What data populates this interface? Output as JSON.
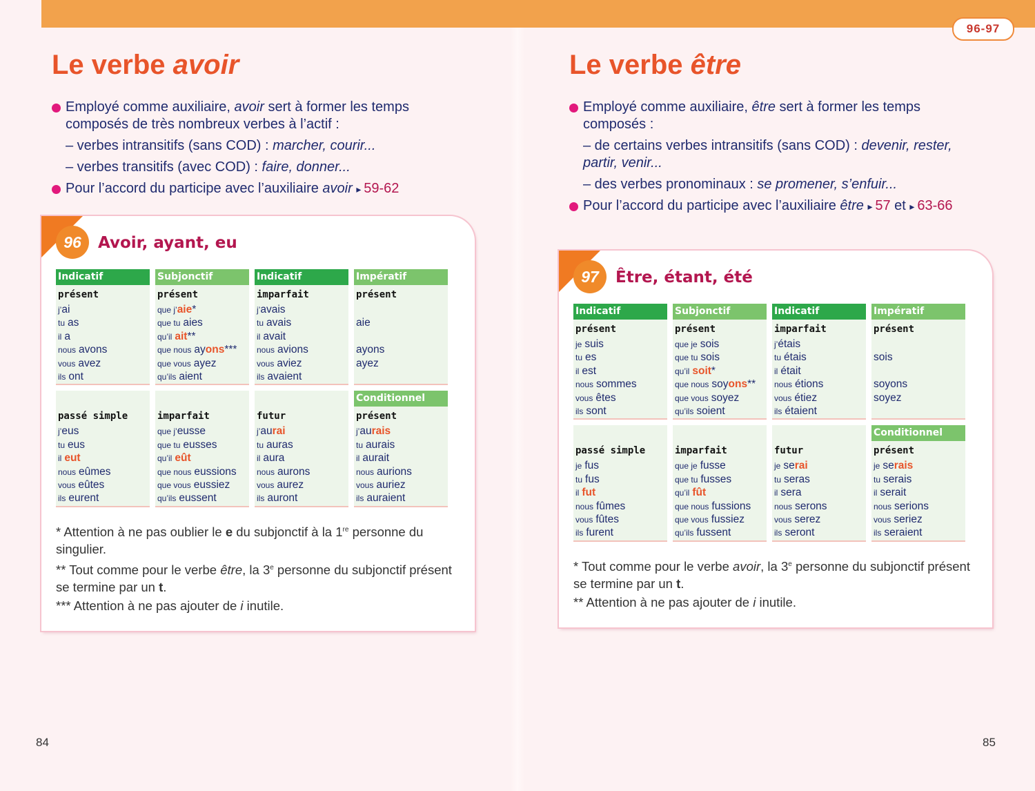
{
  "tab": "96-97",
  "pages": [
    {
      "number": "84",
      "title": [
        "Le verbe ",
        {
          "text": "avoir",
          "italic": true
        }
      ],
      "bullets": [
        {
          "text": [
            "Employé comme auxiliaire, ",
            {
              "text": "avoir",
              "italic": true
            },
            " sert à former les temps composés de très nombreux verbes à l’actif :"
          ],
          "subs": [
            [
              "– verbes intransitifs (sans COD) : ",
              {
                "text": "marcher, courir...",
                "italic": true
              }
            ],
            [
              "– verbes transitifs (avec COD) : ",
              {
                "text": "faire, donner...",
                "italic": true
              }
            ]
          ]
        },
        {
          "text": [
            "Pour l’accord du participe avec l’auxiliaire ",
            {
              "text": "avoir",
              "italic": true
            },
            " ",
            {
              "text": "59-62",
              "ref": true
            }
          ]
        }
      ],
      "card": {
        "number": "96",
        "title": "Avoir, ayant, eu",
        "blocks": [
          [
            {
              "header": "Indicatif",
              "header_color": "#2da84a",
              "tense": "présent",
              "lines": [
                [
                  "j’",
                  "ai"
                ],
                [
                  "tu",
                  "as"
                ],
                [
                  "il",
                  "a"
                ],
                [
                  "nous",
                  "avons"
                ],
                [
                  "vous",
                  "avez"
                ],
                [
                  "ils",
                  "ont"
                ]
              ]
            },
            {
              "header": "Subjonctif",
              "header_color": "#7cc46c",
              "tense": "présent",
              "lines": [
                [
                  "que j’",
                  {
                    "text": "aie",
                    "accent": true
                  },
                  "*"
                ],
                [
                  "que tu",
                  "aies"
                ],
                [
                  "qu’il",
                  {
                    "text": "ait",
                    "accent": true
                  },
                  "**"
                ],
                [
                  "que nous",
                  "ay",
                  {
                    "text": "ons",
                    "accent": true
                  },
                  "***"
                ],
                [
                  "que vous",
                  "ayez"
                ],
                [
                  "qu’ils",
                  "aient"
                ]
              ]
            },
            {
              "header": "Indicatif",
              "header_color": "#2da84a",
              "tense": "imparfait",
              "lines": [
                [
                  "j’",
                  "avais"
                ],
                [
                  "tu",
                  "avais"
                ],
                [
                  "il",
                  "avait"
                ],
                [
                  "nous",
                  "avions"
                ],
                [
                  "vous",
                  "aviez"
                ],
                [
                  "ils",
                  "avaient"
                ]
              ]
            },
            {
              "header": "Impératif",
              "header_color": "#7cc46c",
              "tense": "présent",
              "lines": [
                null,
                [
                  "aie"
                ],
                null,
                [
                  "ayons"
                ],
                [
                  "ayez"
                ],
                null
              ]
            }
          ],
          [
            {
              "header": null,
              "tense": "passé simple",
              "lines": [
                [
                  "j’",
                  "eus"
                ],
                [
                  "tu",
                  "eus"
                ],
                [
                  "il",
                  {
                    "text": "eut",
                    "accent": true
                  }
                ],
                [
                  "nous",
                  "eûmes"
                ],
                [
                  "vous",
                  "eûtes"
                ],
                [
                  "ils",
                  "eurent"
                ]
              ]
            },
            {
              "header": null,
              "tense": "imparfait",
              "lines": [
                [
                  "que j’",
                  "eusse"
                ],
                [
                  "que tu",
                  "eusses"
                ],
                [
                  "qu’il",
                  {
                    "text": "eût",
                    "accent": true
                  }
                ],
                [
                  "que nous",
                  "eussions"
                ],
                [
                  "que vous",
                  "eussiez"
                ],
                [
                  "qu’ils",
                  "eussent"
                ]
              ]
            },
            {
              "header": null,
              "tense": "futur",
              "lines": [
                [
                  "j’",
                  "au",
                  {
                    "text": "rai",
                    "accent": true
                  }
                ],
                [
                  "tu",
                  "auras"
                ],
                [
                  "il",
                  "aura"
                ],
                [
                  "nous",
                  "aurons"
                ],
                [
                  "vous",
                  "aurez"
                ],
                [
                  "ils",
                  "auront"
                ]
              ]
            },
            {
              "header": "Conditionnel",
              "header_color": "#7cc46c",
              "tense": "présent",
              "lines": [
                [
                  "j’",
                  "au",
                  {
                    "text": "rais",
                    "accent": true
                  }
                ],
                [
                  "tu",
                  "aurais"
                ],
                [
                  "il",
                  "aurait"
                ],
                [
                  "nous",
                  "aurions"
                ],
                [
                  "vous",
                  "auriez"
                ],
                [
                  "ils",
                  "auraient"
                ]
              ]
            }
          ]
        ],
        "notes": [
          [
            "* Attention à ne pas oublier le ",
            {
              "text": "e",
              "bold": true
            },
            " du subjonctif à la 1",
            {
              "text": "re",
              "sup": true
            },
            " personne du singulier."
          ],
          [
            "** Tout comme pour le verbe ",
            {
              "text": "être",
              "italic": true
            },
            ", la 3",
            {
              "text": "e",
              "sup": true
            },
            " personne du subjonctif présent se termine par un ",
            {
              "text": "t",
              "bold": true
            },
            "."
          ],
          [
            "*** Attention à ne pas ajouter de ",
            {
              "text": "i",
              "italic": true
            },
            " inutile."
          ]
        ]
      }
    },
    {
      "number": "85",
      "title": [
        "Le verbe ",
        {
          "text": "être",
          "italic": true
        }
      ],
      "bullets": [
        {
          "text": [
            "Employé comme auxiliaire, ",
            {
              "text": "être",
              "italic": true
            },
            " sert à former les temps composés :"
          ],
          "subs": [
            [
              "– de certains verbes intransitifs (sans COD) : ",
              {
                "text": "devenir, rester, partir, venir...",
                "italic": true
              }
            ],
            [
              "– des verbes pronominaux : ",
              {
                "text": "se promener, s’enfuir...",
                "italic": true
              }
            ]
          ]
        },
        {
          "text": [
            "Pour l’accord du participe avec l’auxiliaire ",
            {
              "text": "être",
              "italic": true
            },
            " ",
            {
              "text": "57",
              "ref": true
            },
            " et ",
            {
              "text": "63-66",
              "ref": true
            }
          ]
        }
      ],
      "card": {
        "number": "97",
        "title": "Être, étant, été",
        "blocks": [
          [
            {
              "header": "Indicatif",
              "header_color": "#2da84a",
              "tense": "présent",
              "lines": [
                [
                  "je",
                  "suis"
                ],
                [
                  "tu",
                  "es"
                ],
                [
                  "il",
                  "est"
                ],
                [
                  "nous",
                  "sommes"
                ],
                [
                  "vous",
                  "êtes"
                ],
                [
                  "ils",
                  "sont"
                ]
              ]
            },
            {
              "header": "Subjonctif",
              "header_color": "#7cc46c",
              "tense": "présent",
              "lines": [
                [
                  "que je",
                  "sois"
                ],
                [
                  "que tu",
                  "sois"
                ],
                [
                  "qu’il",
                  {
                    "text": "soit",
                    "accent": true
                  },
                  "*"
                ],
                [
                  "que nous",
                  "soy",
                  {
                    "text": "ons",
                    "accent": true
                  },
                  "**"
                ],
                [
                  "que vous",
                  "soyez"
                ],
                [
                  "qu’ils",
                  "soient"
                ]
              ]
            },
            {
              "header": "Indicatif",
              "header_color": "#2da84a",
              "tense": "imparfait",
              "lines": [
                [
                  "j’",
                  "étais"
                ],
                [
                  "tu",
                  "étais"
                ],
                [
                  "il",
                  "était"
                ],
                [
                  "nous",
                  "étions"
                ],
                [
                  "vous",
                  "étiez"
                ],
                [
                  "ils",
                  "étaient"
                ]
              ]
            },
            {
              "header": "Impératif",
              "header_color": "#7cc46c",
              "tense": "présent",
              "lines": [
                null,
                [
                  "sois"
                ],
                null,
                [
                  "soyons"
                ],
                [
                  "soyez"
                ],
                null
              ]
            }
          ],
          [
            {
              "header": null,
              "tense": "passé simple",
              "lines": [
                [
                  "je",
                  "fus"
                ],
                [
                  "tu",
                  "fus"
                ],
                [
                  "il",
                  {
                    "text": "fut",
                    "accent": true
                  }
                ],
                [
                  "nous",
                  "fûmes"
                ],
                [
                  "vous",
                  "fûtes"
                ],
                [
                  "ils",
                  "furent"
                ]
              ]
            },
            {
              "header": null,
              "tense": "imparfait",
              "lines": [
                [
                  "que je",
                  "fusse"
                ],
                [
                  "que tu",
                  "fusses"
                ],
                [
                  "qu’il",
                  {
                    "text": "fût",
                    "accent": true
                  }
                ],
                [
                  "que nous",
                  "fussions"
                ],
                [
                  "que vous",
                  "fussiez"
                ],
                [
                  "qu’ils",
                  "fussent"
                ]
              ]
            },
            {
              "header": null,
              "tense": "futur",
              "lines": [
                [
                  "je",
                  "se",
                  {
                    "text": "rai",
                    "accent": true
                  }
                ],
                [
                  "tu",
                  "seras"
                ],
                [
                  "il",
                  "sera"
                ],
                [
                  "nous",
                  "serons"
                ],
                [
                  "vous",
                  "serez"
                ],
                [
                  "ils",
                  "seront"
                ]
              ]
            },
            {
              "header": "Conditionnel",
              "header_color": "#7cc46c",
              "tense": "présent",
              "lines": [
                [
                  "je",
                  "se",
                  {
                    "text": "rais",
                    "accent": true
                  }
                ],
                [
                  "tu",
                  "serais"
                ],
                [
                  "il",
                  "serait"
                ],
                [
                  "nous",
                  "serions"
                ],
                [
                  "vous",
                  "seriez"
                ],
                [
                  "ils",
                  "seraient"
                ]
              ]
            }
          ]
        ],
        "notes": [
          [
            "* Tout comme pour le verbe ",
            {
              "text": "avoir",
              "italic": true
            },
            ", la 3",
            {
              "text": "e",
              "sup": true
            },
            " personne du subjonctif présent se termine par un ",
            {
              "text": "t",
              "bold": true
            },
            "."
          ],
          [
            "** Attention à ne pas ajouter de ",
            {
              "text": "i",
              "italic": true
            },
            " inutile."
          ]
        ]
      }
    }
  ]
}
